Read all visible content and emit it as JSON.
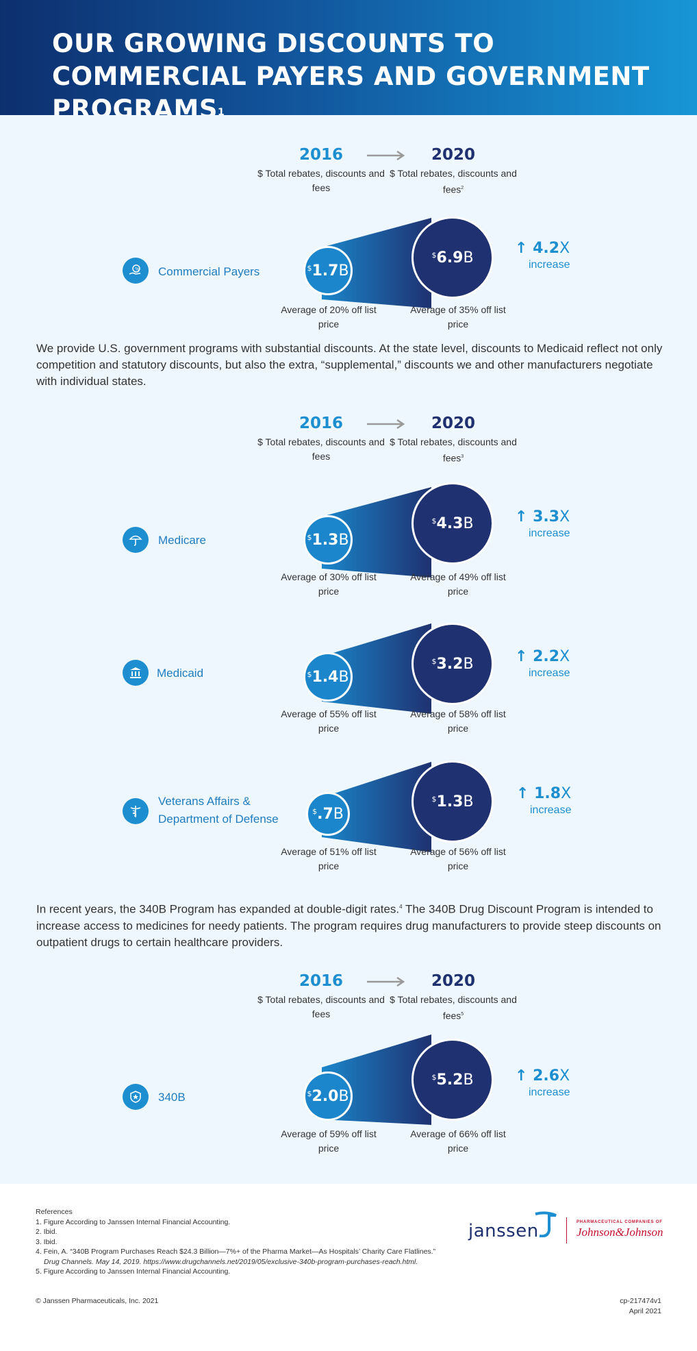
{
  "header": {
    "title": "OUR GROWING DISCOUNTS TO COMMERCIAL PAYERS AND GOVERNMENT PROGRAMS",
    "title_sup": "1"
  },
  "colors": {
    "header_dark": "#0d2f6e",
    "header_light": "#1796d6",
    "accent_light": "#1d8fd1",
    "accent_dark": "#1f3170",
    "panel_bg": "#eef7fd",
    "jnj_red": "#c41230"
  },
  "year_headers": [
    {
      "from_year": "2016",
      "from_sub": "$ Total rebates, discounts and fees",
      "to_year": "2020",
      "to_sub": "$ Total rebates, discounts and fees",
      "to_sup": "2"
    },
    {
      "from_year": "2016",
      "from_sub": "$ Total rebates, discounts and fees",
      "to_year": "2020",
      "to_sub": "$ Total rebates, discounts and fees",
      "to_sup": "3"
    },
    {
      "from_year": "2016",
      "from_sub": "$ Total rebates, discounts and fees",
      "to_year": "2020",
      "to_sub": "$ Total rebates, discounts and fees",
      "to_sup": "5"
    }
  ],
  "rows": [
    {
      "label": "Commercial Payers",
      "icon": "hand-money-icon",
      "from_value": "1.7",
      "to_value": "6.9",
      "unit": "B",
      "currency": "$",
      "from_avg": "Average of 20% off list price",
      "to_avg": "Average of 35% off list price",
      "increase": "4.2",
      "increase_unit": "X",
      "increase_word": "increase"
    },
    {
      "label": "Medicare",
      "icon": "umbrella-icon",
      "from_value": "1.3",
      "to_value": "4.3",
      "unit": "B",
      "currency": "$",
      "from_avg": "Average of 30% off list price",
      "to_avg": "Average of 49% off list price",
      "increase": "3.3",
      "increase_unit": "X",
      "increase_word": "increase"
    },
    {
      "label": "Medicaid",
      "icon": "government-building-icon",
      "from_value": "1.4",
      "to_value": "3.2",
      "unit": "B",
      "currency": "$",
      "from_avg": "Average of 55% off list price",
      "to_avg": "Average of 58% off list price",
      "increase": "2.2",
      "increase_unit": "X",
      "increase_word": "increase"
    },
    {
      "label": "Veterans Affairs & Department of Defense",
      "label_line1": "Veterans Affairs &",
      "label_line2": "Department of Defense",
      "icon": "caduceus-icon",
      "from_value": ".7",
      "to_value": "1.3",
      "unit": "B",
      "currency": "$",
      "from_avg": "Average of 51% off list price",
      "to_avg": "Average of 56% off list price",
      "increase": "1.8",
      "increase_unit": "X",
      "increase_word": "increase"
    },
    {
      "label": "340B",
      "icon": "shield-star-icon",
      "from_value": "2.0",
      "to_value": "5.2",
      "unit": "B",
      "currency": "$",
      "from_avg": "Average of 59% off list price",
      "to_avg": "Average of 66% off list price",
      "increase": "2.6",
      "increase_unit": "X",
      "increase_word": "increase"
    }
  ],
  "paragraphs": {
    "government": "We provide U.S. government programs with substantial discounts. At the state level, discounts to Medicaid reflect not only competition and statutory discounts, but also the extra, “supplemental,” discounts we and other manufacturers negotiate with individual states.",
    "p340b_a": "In recent years, the 340B Program has expanded at double-digit rates.",
    "p340b_sup": "4",
    "p340b_b": " The 340B Drug Discount Program is intended to increase access to medicines for needy patients. The program requires drug manufacturers to provide steep discounts on outpatient drugs to certain healthcare providers."
  },
  "references": {
    "title": "References",
    "items": [
      "1.  Figure According to Janssen Internal Financial Accounting.",
      "2.  Ibid.",
      "3.  Ibid.",
      "4.  Fein, A. “340B Program Purchases Reach $24.3 Billion—7%+ of the Pharma Market—As Hospitals’ Charity Care Flatlines.”",
      "5.  Figure According to Janssen Internal Financial Accounting."
    ],
    "item4_cont": "Drug Channels. May 14, 2019. https://www.drugchannels.net/2019/05/exclusive-340b-program-purchases-reach.html."
  },
  "footer": {
    "copyright": "© Janssen Pharmaceuticals, Inc. 2021",
    "doc_id": "cp-217474v1",
    "date": "April 2021"
  },
  "logo": {
    "janssen": "janssen",
    "pharma": "PHARMACEUTICAL COMPANIES OF",
    "jnj": "Johnson&Johnson"
  }
}
